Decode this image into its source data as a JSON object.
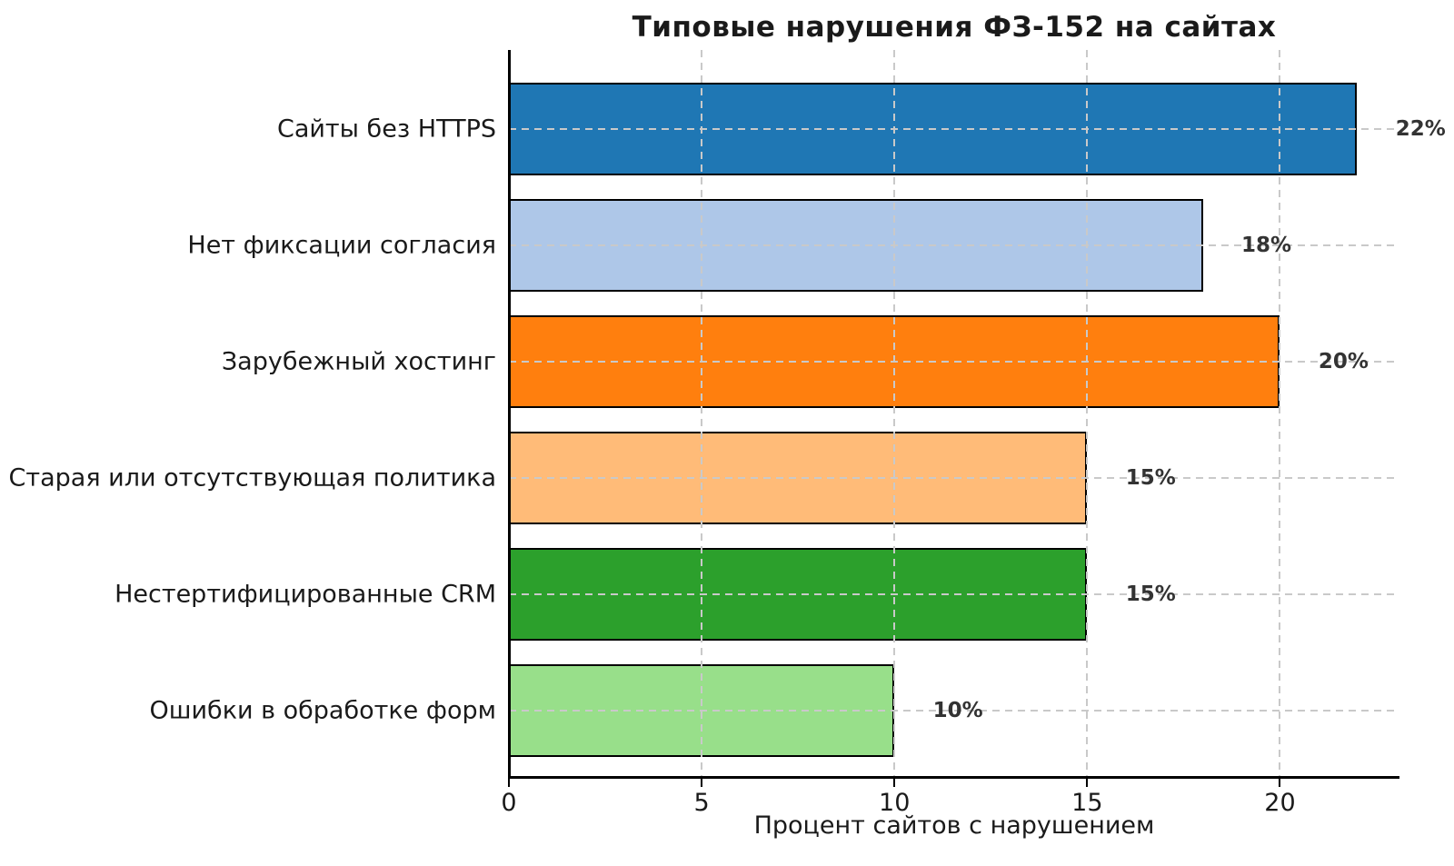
{
  "chart_data": {
    "type": "bar",
    "orientation": "horizontal",
    "title": "Типовые нарушения ФЗ-152 на сайтах",
    "xlabel": "Процент сайтов с нарушением",
    "ylabel": "",
    "categories": [
      "Сайты без HTTPS",
      "Нет фиксации согласия",
      "Зарубежный хостинг",
      "Старая или отсутствующая политика",
      "Нестертифицированные CRM",
      "Ошибки в обработке форм"
    ],
    "values": [
      22,
      18,
      20,
      15,
      15,
      10
    ],
    "value_labels": [
      "22%",
      "18%",
      "20%",
      "15%",
      "15%",
      "10%"
    ],
    "bar_colors": [
      "#1f77b4",
      "#aec7e8",
      "#ff7f0e",
      "#ffbb78",
      "#2ca02c",
      "#98df8a"
    ],
    "bar_edge_color": "#000000",
    "x_ticks": [
      "0",
      "5",
      "10",
      "15",
      "20"
    ],
    "x_tick_values": [
      0,
      5,
      10,
      15,
      20
    ],
    "xlim": [
      0,
      23.1
    ],
    "grid": "dashed",
    "grid_color": "#c9c9c9",
    "axis_color": "#000000",
    "background": "#ffffff",
    "legend": "none"
  }
}
